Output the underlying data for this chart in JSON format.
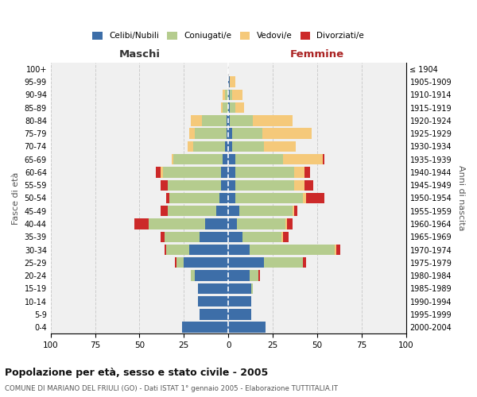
{
  "age_groups": [
    "0-4",
    "5-9",
    "10-14",
    "15-19",
    "20-24",
    "25-29",
    "30-34",
    "35-39",
    "40-44",
    "45-49",
    "50-54",
    "55-59",
    "60-64",
    "65-69",
    "70-74",
    "75-79",
    "80-84",
    "85-89",
    "90-94",
    "95-99",
    "100+"
  ],
  "birth_years": [
    "2000-2004",
    "1995-1999",
    "1990-1994",
    "1985-1989",
    "1980-1984",
    "1975-1979",
    "1970-1974",
    "1965-1969",
    "1960-1964",
    "1955-1959",
    "1950-1954",
    "1945-1949",
    "1940-1944",
    "1935-1939",
    "1930-1934",
    "1925-1929",
    "1920-1924",
    "1915-1919",
    "1910-1914",
    "1905-1909",
    "≤ 1904"
  ],
  "males": {
    "celibi": [
      26,
      16,
      17,
      17,
      19,
      25,
      22,
      16,
      13,
      7,
      5,
      4,
      4,
      3,
      2,
      1,
      1,
      0,
      0,
      0,
      0
    ],
    "coniugati": [
      0,
      0,
      0,
      0,
      2,
      4,
      13,
      20,
      32,
      27,
      28,
      30,
      33,
      28,
      18,
      18,
      14,
      3,
      2,
      0,
      0
    ],
    "vedovi": [
      0,
      0,
      0,
      0,
      0,
      0,
      0,
      0,
      0,
      0,
      0,
      0,
      1,
      1,
      3,
      3,
      6,
      1,
      1,
      0,
      0
    ],
    "divorziati": [
      0,
      0,
      0,
      0,
      0,
      1,
      1,
      2,
      8,
      4,
      2,
      4,
      3,
      0,
      0,
      0,
      0,
      0,
      0,
      0,
      0
    ]
  },
  "females": {
    "nubili": [
      21,
      13,
      13,
      13,
      12,
      20,
      12,
      8,
      5,
      6,
      4,
      4,
      4,
      4,
      2,
      2,
      1,
      1,
      1,
      1,
      0
    ],
    "coniugate": [
      0,
      0,
      0,
      1,
      5,
      22,
      48,
      22,
      27,
      30,
      38,
      33,
      33,
      27,
      18,
      17,
      13,
      3,
      1,
      0,
      0
    ],
    "vedove": [
      0,
      0,
      0,
      0,
      0,
      0,
      1,
      1,
      1,
      1,
      2,
      6,
      6,
      22,
      18,
      28,
      22,
      5,
      6,
      3,
      0
    ],
    "divorziate": [
      0,
      0,
      0,
      0,
      1,
      2,
      2,
      3,
      3,
      2,
      10,
      5,
      3,
      1,
      0,
      0,
      0,
      0,
      0,
      0,
      0
    ]
  },
  "colors": {
    "celibi": "#3d6ea8",
    "coniugati": "#b5cc8e",
    "vedovi": "#f5c97a",
    "divorziati": "#cc2929"
  },
  "xlim": 100,
  "title": "Popolazione per età, sesso e stato civile - 2005",
  "subtitle": "COMUNE DI MARIANO DEL FRIULI (GO) - Dati ISTAT 1° gennaio 2005 - Elaborazione TUTTITALIA.IT",
  "xlabel_left": "Maschi",
  "xlabel_right": "Femmine",
  "ylabel_left": "Fasce di età",
  "ylabel_right": "Anni di nascita",
  "legend_labels": [
    "Celibi/Nubili",
    "Coniugati/e",
    "Vedovi/e",
    "Divorziati/e"
  ],
  "bg_color": "#f0f0f0",
  "grid_color": "#cccccc"
}
